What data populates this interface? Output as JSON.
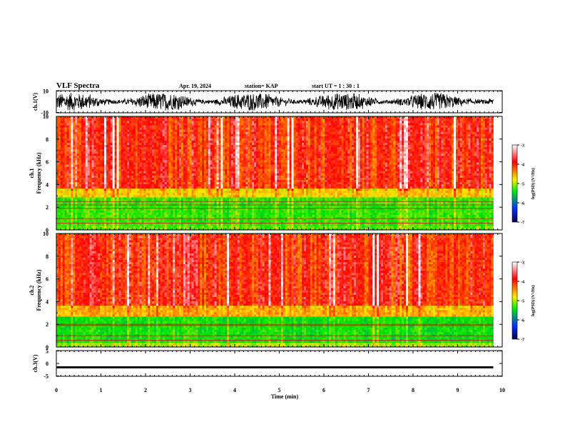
{
  "header": {
    "title": "VLF Spectra",
    "date": "Apr. 19, 2024",
    "station": "station= KAP",
    "start": "start  UT =   1 : 30 : 1"
  },
  "colorbar": {
    "label": "log(PSD) (V²/Hz)",
    "ticks": [
      "-3",
      "-4",
      "-5",
      "-6",
      "-7"
    ],
    "colors": [
      "#ffffff",
      "#ff0000",
      "#ffee00",
      "#00ee00",
      "#0033ff",
      "#000055"
    ]
  },
  "chart_data": [
    {
      "type": "line",
      "name": "ch1-waveform",
      "ylabel": "ch.1(V)",
      "ylim": [
        -10,
        10
      ],
      "ytick_labels": [
        "10",
        "-10"
      ],
      "xlim": [
        0,
        10
      ],
      "x_extent": [
        0,
        9.8
      ],
      "description_of_signal": "dense noisy oscillation roughly between -10 and 10 V"
    },
    {
      "type": "heatmap",
      "name": "ch1-spectrogram",
      "ylabel": "ch.1\nFrequency (kHz)",
      "ylim": [
        0,
        10
      ],
      "yticks": [
        0,
        2,
        4,
        6,
        8,
        10
      ],
      "xlim": [
        0,
        10
      ],
      "x_extent": [
        0,
        9.8
      ],
      "bands": [
        {
          "f_range": [
            0,
            0.3
          ],
          "log_psd": -4.8
        },
        {
          "f_range": [
            0.3,
            2.8
          ],
          "log_psd": -4.9
        },
        {
          "f_range": [
            2.8,
            3.6
          ],
          "log_psd": -4.3
        },
        {
          "f_range": [
            3.6,
            10
          ],
          "log_psd": -3.7
        }
      ],
      "harmonic_lines_khz": [
        0.6,
        1.0,
        1.9,
        2.2,
        2.5
      ]
    },
    {
      "type": "heatmap",
      "name": "ch2-spectrogram",
      "ylabel": "ch.2\nFrequency (kHz)",
      "ylim": [
        0,
        10
      ],
      "yticks": [
        0,
        2,
        4,
        6,
        8,
        10
      ],
      "xlim": [
        0,
        10
      ],
      "x_extent": [
        0,
        9.8
      ],
      "bands": [
        {
          "f_range": [
            0,
            0.4
          ],
          "log_psd": -4.6
        },
        {
          "f_range": [
            0.4,
            2.7
          ],
          "log_psd": -5.0
        },
        {
          "f_range": [
            2.7,
            3.6
          ],
          "log_psd": -4.2
        },
        {
          "f_range": [
            3.6,
            10
          ],
          "log_psd": -3.7
        }
      ],
      "harmonic_lines_khz": [
        0.6,
        1.0,
        1.9,
        2.0
      ]
    },
    {
      "type": "line",
      "name": "ch3-waveform",
      "ylabel": "ch.3(V)",
      "ylim": [
        -5,
        5
      ],
      "ytick_labels": [
        "5",
        "0",
        "-5"
      ],
      "xlim": [
        0,
        10
      ],
      "x_extent": [
        0,
        9.8
      ],
      "level": -1.5,
      "band_halfwidth": 0.4
    }
  ],
  "xaxis": {
    "label": "Time  (min)",
    "ticks": [
      "0",
      "1",
      "2",
      "3",
      "4",
      "5",
      "6",
      "7",
      "8",
      "9",
      "10"
    ],
    "range": [
      0,
      10
    ]
  }
}
